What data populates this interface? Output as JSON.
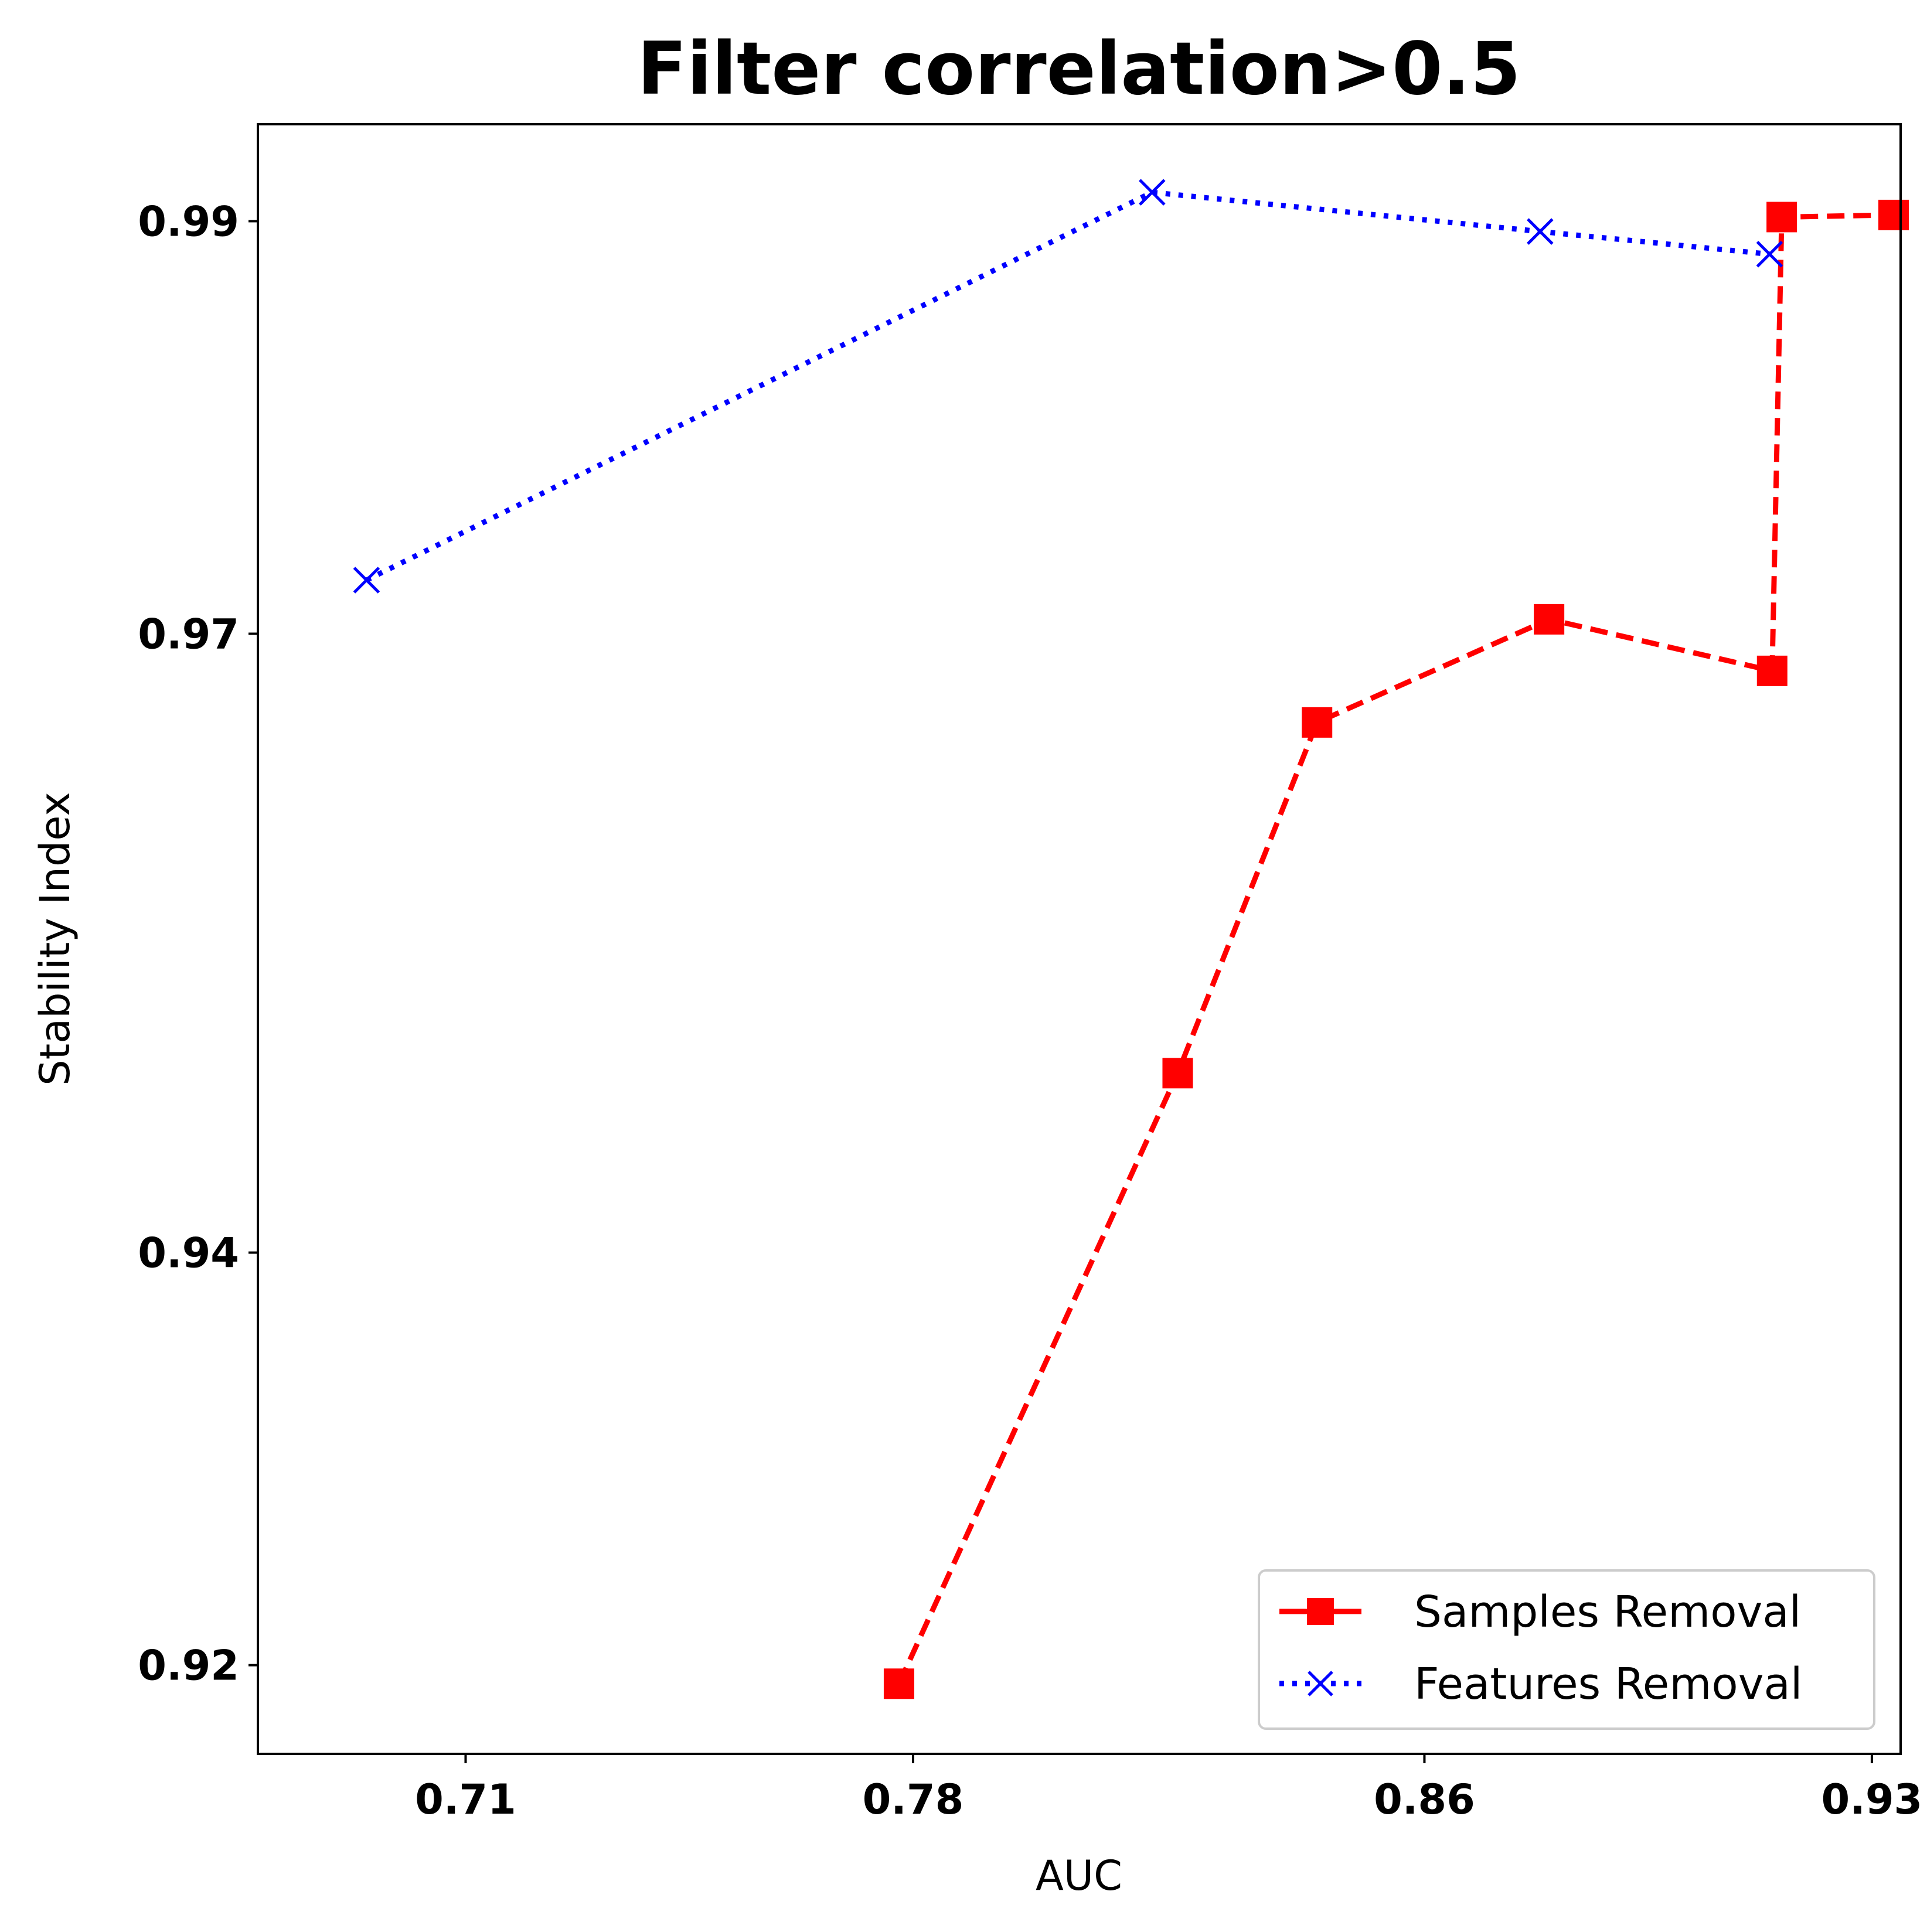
{
  "chart_data": {
    "type": "line",
    "title": "Filter correlation>0.5",
    "xlabel": "AUC",
    "ylabel": "Stability Index",
    "xlim": [
      0.6775,
      0.9345
    ],
    "ylim": [
      0.9157,
      0.9947
    ],
    "xticks": [
      0.71,
      0.78,
      0.86,
      0.93
    ],
    "xtick_labels": [
      "0.71",
      "0.78",
      "0.86",
      "0.93"
    ],
    "yticks": [
      0.92,
      0.94,
      0.97,
      0.99
    ],
    "ytick_labels": [
      "0.92",
      "0.94",
      "0.97",
      "0.99"
    ],
    "grid": false,
    "legend_position": "lower-right",
    "series": [
      {
        "name": "Samples Removal",
        "color": "#ff0000",
        "linestyle": "dashed",
        "marker": "square",
        "x": [
          0.7778,
          0.8214,
          0.8432,
          0.8795,
          0.9144,
          0.9159,
          0.9334
        ],
        "y": [
          0.9191,
          0.9487,
          0.9657,
          0.9707,
          0.9682,
          0.9902,
          0.9903
        ]
      },
      {
        "name": "Features Removal",
        "color": "#0000ff",
        "linestyle": "dotted",
        "marker": "x",
        "x": [
          0.6945,
          0.8174,
          0.8781,
          0.914
        ],
        "y": [
          0.9726,
          0.9914,
          0.9895,
          0.9884
        ]
      }
    ]
  }
}
